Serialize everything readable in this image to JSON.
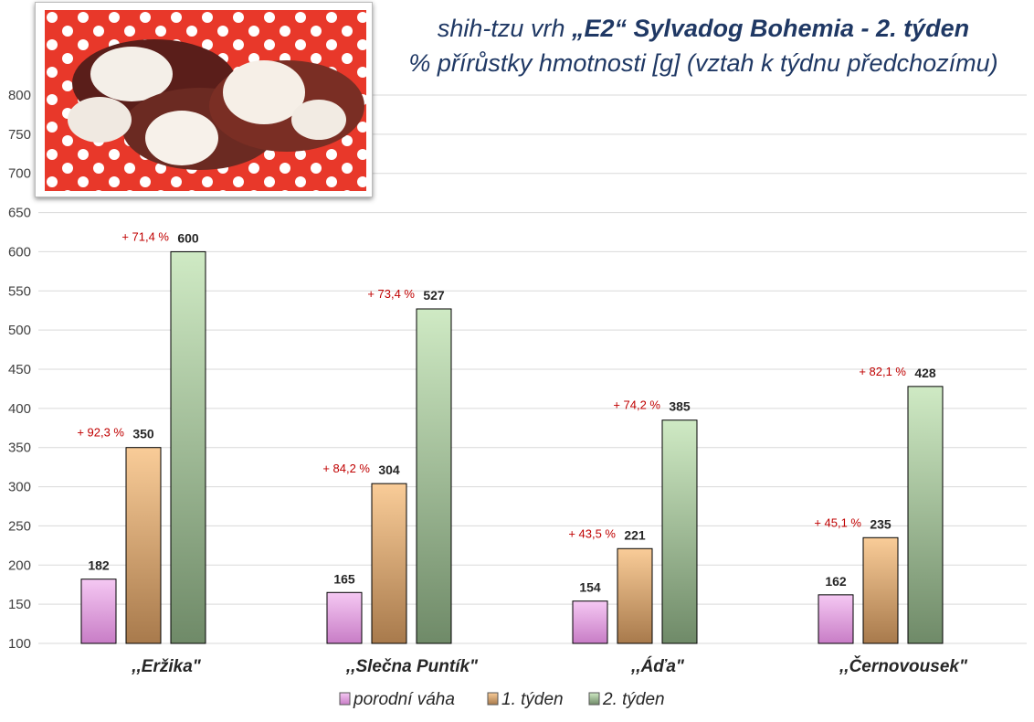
{
  "title": {
    "line1_prefix": "shih-tzu vrh ",
    "line1_bold": "„E2“ Sylvadog Bohemia - 2. týden",
    "line2": "% přírůstky hmotnosti [g] (vztah k týdnu předchozímu)"
  },
  "photo": {
    "alt": "puppies photo"
  },
  "colors": {
    "porodni": "#e8a6e6",
    "tyden1": "#e8a86c",
    "tyden2": "#a9cf9c",
    "delta": "#c00000",
    "value": "#262626",
    "grid": "#d9d9d9"
  },
  "chart_data": {
    "type": "bar",
    "categories": [
      ",,Eržika\"",
      ",,Slečna Puntík\"",
      ",,Áďa\"",
      ",,Černovousek\""
    ],
    "series": [
      {
        "name": "porodní váha",
        "values": [
          182,
          165,
          154,
          162
        ]
      },
      {
        "name": "1. týden",
        "values": [
          350,
          304,
          221,
          235
        ],
        "annotations": [
          "+ 92,3 %",
          "+ 84,2 %",
          "+ 43,5 %",
          "+ 45,1 %"
        ]
      },
      {
        "name": "2. týden",
        "values": [
          600,
          527,
          385,
          428
        ],
        "annotations": [
          "+ 71,4 %",
          "+ 73,4 %",
          "+ 74,2 %",
          "+ 82,1 %"
        ]
      }
    ],
    "ylim": [
      100,
      800
    ],
    "yticks": [
      100,
      150,
      200,
      250,
      300,
      350,
      400,
      450,
      500,
      550,
      600,
      650,
      700,
      750,
      800
    ],
    "grid": true,
    "legend": "bottom"
  }
}
